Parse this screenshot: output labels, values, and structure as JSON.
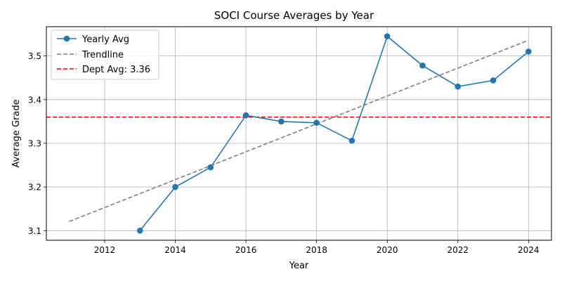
{
  "chart_data": {
    "type": "line",
    "title": "SOCI Course Averages by Year",
    "xlabel": "Year",
    "ylabel": "Average Grade",
    "xlim": [
      2010.35,
      2024.65
    ],
    "ylim": [
      3.078,
      3.567
    ],
    "x_ticks": [
      2012,
      2014,
      2016,
      2018,
      2020,
      2022,
      2024
    ],
    "y_ticks": [
      3.1,
      3.2,
      3.3,
      3.4,
      3.5
    ],
    "grid": true,
    "legend_position": "top-left",
    "series": [
      {
        "name": "Yearly Avg",
        "style": "solid",
        "marker": "circle",
        "color": "#1f77b4",
        "x": [
          2013,
          2014,
          2015,
          2016,
          2017,
          2018,
          2019,
          2020,
          2021,
          2022,
          2023,
          2024
        ],
        "y": [
          3.1,
          3.2,
          3.245,
          3.364,
          3.35,
          3.347,
          3.306,
          3.545,
          3.478,
          3.43,
          3.444,
          3.51
        ]
      },
      {
        "name": "Trendline",
        "style": "dashed",
        "color": "#7f7f7f",
        "x": [
          2011,
          2024
        ],
        "y": [
          3.121,
          3.536
        ]
      },
      {
        "name": "Dept Avg: 3.36",
        "style": "dashed",
        "color": "#ff0000",
        "orientation": "horizontal",
        "y": 3.36
      }
    ]
  }
}
